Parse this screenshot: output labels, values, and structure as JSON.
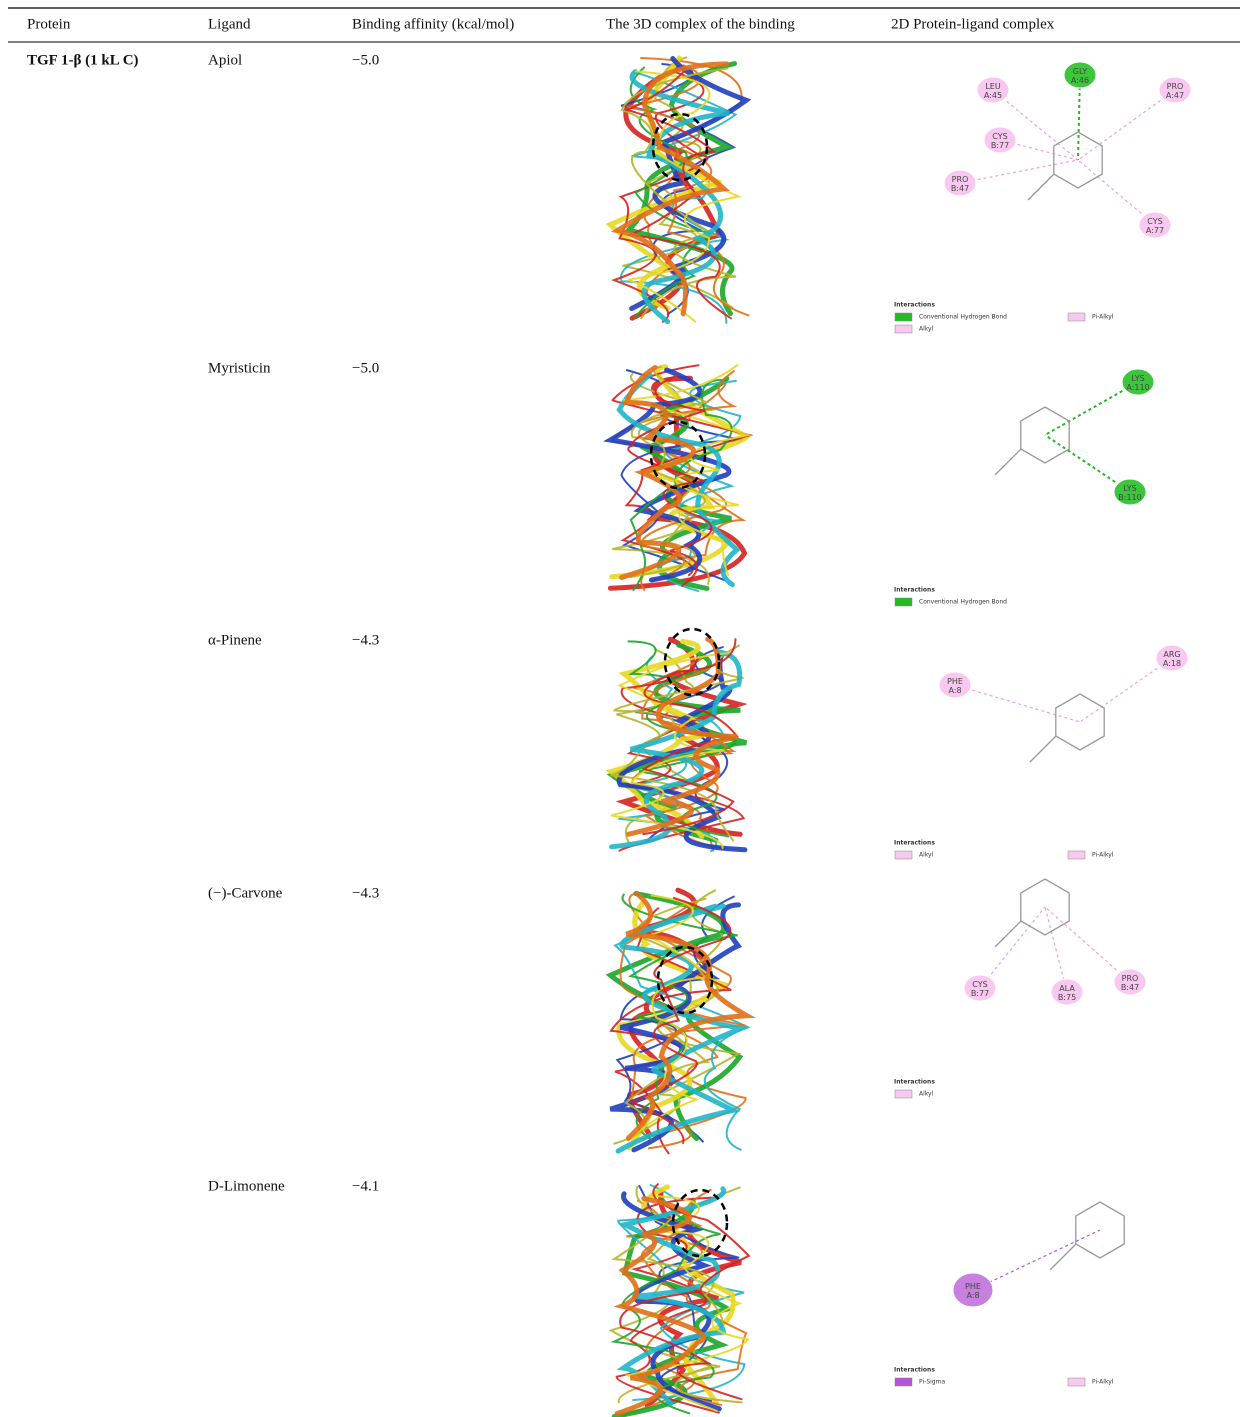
{
  "table": {
    "header": [
      "Protein",
      "Ligand",
      "Binding affinity (kcal/mol)",
      "The 3D complex of the binding",
      "2D Protein-ligand complex"
    ],
    "protein": "TGF 1-β (1 kL C)",
    "rows": [
      {
        "ligand": "Apiol",
        "affinity": "−5.0",
        "residues": [
          {
            "label": [
              "LEU",
              "A:45"
            ],
            "color": "#f9c8f0"
          },
          {
            "label": [
              "GLY",
              "A:46"
            ],
            "color": "#3cc63c"
          },
          {
            "label": [
              "PRO",
              "A:47"
            ],
            "color": "#f9c8f0"
          },
          {
            "label": [
              "CYS",
              "B:77"
            ],
            "color": "#f9c8f0"
          },
          {
            "label": [
              "PRO",
              "B:47"
            ],
            "color": "#f9c8f0"
          },
          {
            "label": [
              "CYS",
              "A:77"
            ],
            "color": "#f9c8f0"
          }
        ],
        "legend_title": "Interactions",
        "legend": [
          {
            "label": "Conventional Hydrogen Bond",
            "color": "#22bb22"
          },
          {
            "label": "Pi-Alkyl",
            "color": "#f9c8f0"
          },
          {
            "label": "Alkyl",
            "color": "#f9c8f0"
          }
        ]
      },
      {
        "ligand": "Myristicin",
        "affinity": "−5.0",
        "residues": [
          {
            "label": [
              "LYS",
              "A:110"
            ],
            "color": "#3cc63c"
          },
          {
            "label": [
              "LYS",
              "B:110"
            ],
            "color": "#3cc63c"
          }
        ],
        "legend_title": "Interactions",
        "legend": [
          {
            "label": "Conventional Hydrogen Bond",
            "color": "#22bb22"
          }
        ]
      },
      {
        "ligand": "α-Pinene",
        "affinity": "−4.3",
        "residues": [
          {
            "label": [
              "PHE",
              "A:8"
            ],
            "color": "#f9c8f0"
          },
          {
            "label": [
              "ARG",
              "A:18"
            ],
            "color": "#f9c8f0"
          }
        ],
        "legend_title": "Interactions",
        "legend": [
          {
            "label": "Alkyl",
            "color": "#f9c8f0"
          },
          {
            "label": "Pi-Alkyl",
            "color": "#f9c8f0"
          }
        ]
      },
      {
        "ligand": "(−)-Carvone",
        "affinity": "−4.3",
        "residues": [
          {
            "label": [
              "CYS",
              "B:77"
            ],
            "color": "#f9c8f0"
          },
          {
            "label": [
              "ALA",
              "B:75"
            ],
            "color": "#f9c8f0"
          },
          {
            "label": [
              "PRO",
              "B:47"
            ],
            "color": "#f9c8f0"
          }
        ],
        "legend_title": "Interactions",
        "legend": [
          {
            "label": "Alkyl",
            "color": "#f9c8f0"
          }
        ]
      },
      {
        "ligand": "D-Limonene",
        "affinity": "−4.1",
        "residues": [
          {
            "label": [
              "PHE",
              "A:8"
            ],
            "color": "#c77fe0"
          }
        ],
        "legend_title": "Interactions",
        "legend": [
          {
            "label": "Pi-Sigma",
            "color": "#b455d6"
          },
          {
            "label": "Pi-Alkyl",
            "color": "#f9c8f0"
          }
        ]
      }
    ]
  }
}
